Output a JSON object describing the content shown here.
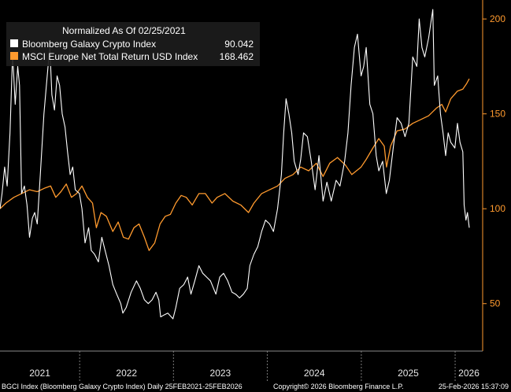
{
  "chart_data": {
    "type": "line",
    "legend_title": "Normalized As Of 02/25/2021",
    "legend_position": "top-left",
    "grid": false,
    "x_range": [
      "2021-02-25",
      "2026-02-25"
    ],
    "ylim": [
      25,
      210
    ],
    "y_ticks": [
      50,
      100,
      150,
      200
    ],
    "x_tick_labels": [
      "2021",
      "2022",
      "2023",
      "2024",
      "2025",
      "2026"
    ],
    "series": [
      {
        "name": "Bloomberg Galaxy Crypto Index",
        "last_value": "90.042",
        "color": "#ffffff",
        "points": [
          [
            "2021-02-25",
            100
          ],
          [
            "2021-03-05",
            108
          ],
          [
            "2021-03-15",
            122
          ],
          [
            "2021-03-25",
            112
          ],
          [
            "2021-04-05",
            140
          ],
          [
            "2021-04-15",
            182
          ],
          [
            "2021-04-25",
            155
          ],
          [
            "2021-05-05",
            175
          ],
          [
            "2021-05-12",
            165
          ],
          [
            "2021-05-20",
            108
          ],
          [
            "2021-05-31",
            112
          ],
          [
            "2021-06-10",
            102
          ],
          [
            "2021-06-20",
            85
          ],
          [
            "2021-07-01",
            95
          ],
          [
            "2021-07-10",
            98
          ],
          [
            "2021-07-20",
            92
          ],
          [
            "2021-08-01",
            118
          ],
          [
            "2021-08-15",
            150
          ],
          [
            "2021-08-31",
            175
          ],
          [
            "2021-09-07",
            185
          ],
          [
            "2021-09-15",
            160
          ],
          [
            "2021-09-25",
            152
          ],
          [
            "2021-10-05",
            170
          ],
          [
            "2021-10-15",
            165
          ],
          [
            "2021-10-25",
            150
          ],
          [
            "2021-11-05",
            143
          ],
          [
            "2021-11-15",
            130
          ],
          [
            "2021-11-25",
            118
          ],
          [
            "2021-12-05",
            122
          ],
          [
            "2021-12-15",
            110
          ],
          [
            "2021-12-31",
            108
          ],
          [
            "2022-01-10",
            100
          ],
          [
            "2022-01-22",
            82
          ],
          [
            "2022-02-05",
            90
          ],
          [
            "2022-02-15",
            78
          ],
          [
            "2022-02-28",
            76
          ],
          [
            "2022-03-15",
            72
          ],
          [
            "2022-03-28",
            85
          ],
          [
            "2022-04-10",
            78
          ],
          [
            "2022-04-25",
            70
          ],
          [
            "2022-05-10",
            60
          ],
          [
            "2022-05-25",
            55
          ],
          [
            "2022-06-10",
            50
          ],
          [
            "2022-06-18",
            45
          ],
          [
            "2022-07-01",
            48
          ],
          [
            "2022-07-20",
            56
          ],
          [
            "2022-08-10",
            62
          ],
          [
            "2022-08-25",
            58
          ],
          [
            "2022-09-10",
            52
          ],
          [
            "2022-09-25",
            50
          ],
          [
            "2022-10-10",
            52
          ],
          [
            "2022-10-25",
            56
          ],
          [
            "2022-11-05",
            52
          ],
          [
            "2022-11-12",
            43
          ],
          [
            "2022-11-25",
            44
          ],
          [
            "2022-12-10",
            45
          ],
          [
            "2022-12-30",
            42
          ],
          [
            "2023-01-10",
            48
          ],
          [
            "2023-01-25",
            58
          ],
          [
            "2023-02-10",
            60
          ],
          [
            "2023-02-25",
            64
          ],
          [
            "2023-03-10",
            55
          ],
          [
            "2023-03-25",
            62
          ],
          [
            "2023-04-10",
            70
          ],
          [
            "2023-04-25",
            66
          ],
          [
            "2023-05-10",
            64
          ],
          [
            "2023-05-25",
            62
          ],
          [
            "2023-06-15",
            55
          ],
          [
            "2023-06-30",
            64
          ],
          [
            "2023-07-15",
            66
          ],
          [
            "2023-07-31",
            62
          ],
          [
            "2023-08-17",
            56
          ],
          [
            "2023-08-31",
            55
          ],
          [
            "2023-09-15",
            53
          ],
          [
            "2023-09-30",
            55
          ],
          [
            "2023-10-15",
            58
          ],
          [
            "2023-10-25",
            70
          ],
          [
            "2023-11-10",
            76
          ],
          [
            "2023-11-25",
            80
          ],
          [
            "2023-12-10",
            88
          ],
          [
            "2023-12-25",
            94
          ],
          [
            "2024-01-10",
            92
          ],
          [
            "2024-01-25",
            88
          ],
          [
            "2024-02-10",
            100
          ],
          [
            "2024-02-25",
            118
          ],
          [
            "2024-03-05",
            140
          ],
          [
            "2024-03-14",
            158
          ],
          [
            "2024-03-25",
            150
          ],
          [
            "2024-04-05",
            140
          ],
          [
            "2024-04-15",
            125
          ],
          [
            "2024-04-30",
            118
          ],
          [
            "2024-05-10",
            126
          ],
          [
            "2024-05-21",
            140
          ],
          [
            "2024-06-05",
            138
          ],
          [
            "2024-06-20",
            125
          ],
          [
            "2024-07-05",
            110
          ],
          [
            "2024-07-20",
            128
          ],
          [
            "2024-08-05",
            104
          ],
          [
            "2024-08-20",
            114
          ],
          [
            "2024-09-06",
            104
          ],
          [
            "2024-09-25",
            115
          ],
          [
            "2024-10-10",
            112
          ],
          [
            "2024-10-28",
            125
          ],
          [
            "2024-11-10",
            140
          ],
          [
            "2024-11-22",
            165
          ],
          [
            "2024-12-05",
            185
          ],
          [
            "2024-12-17",
            192
          ],
          [
            "2024-12-31",
            170
          ],
          [
            "2025-01-10",
            175
          ],
          [
            "2025-01-20",
            185
          ],
          [
            "2025-02-03",
            155
          ],
          [
            "2025-02-15",
            150
          ],
          [
            "2025-02-28",
            128
          ],
          [
            "2025-03-10",
            120
          ],
          [
            "2025-03-25",
            125
          ],
          [
            "2025-04-08",
            108
          ],
          [
            "2025-04-20",
            115
          ],
          [
            "2025-05-05",
            132
          ],
          [
            "2025-05-20",
            148
          ],
          [
            "2025-06-05",
            145
          ],
          [
            "2025-06-20",
            138
          ],
          [
            "2025-07-05",
            145
          ],
          [
            "2025-07-20",
            180
          ],
          [
            "2025-08-05",
            175
          ],
          [
            "2025-08-14",
            200
          ],
          [
            "2025-08-25",
            185
          ],
          [
            "2025-09-05",
            180
          ],
          [
            "2025-09-20",
            190
          ],
          [
            "2025-10-06",
            205
          ],
          [
            "2025-10-12",
            165
          ],
          [
            "2025-10-25",
            170
          ],
          [
            "2025-11-05",
            150
          ],
          [
            "2025-11-15",
            140
          ],
          [
            "2025-11-25",
            128
          ],
          [
            "2025-12-05",
            140
          ],
          [
            "2025-12-15",
            135
          ],
          [
            "2025-12-31",
            132
          ],
          [
            "2026-01-10",
            145
          ],
          [
            "2026-01-20",
            135
          ],
          [
            "2026-01-31",
            130
          ],
          [
            "2026-02-05",
            102
          ],
          [
            "2026-02-12",
            94
          ],
          [
            "2026-02-18",
            98
          ],
          [
            "2026-02-25",
            90
          ]
        ]
      },
      {
        "name": "MSCI Europe Net Total Return USD Index",
        "last_value": "168.462",
        "color": "#ff9a2e",
        "points": [
          [
            "2021-02-25",
            100
          ],
          [
            "2021-03-20",
            103
          ],
          [
            "2021-04-20",
            106
          ],
          [
            "2021-05-20",
            108
          ],
          [
            "2021-06-20",
            110
          ],
          [
            "2021-07-20",
            109
          ],
          [
            "2021-08-20",
            111
          ],
          [
            "2021-09-10",
            112
          ],
          [
            "2021-09-30",
            106
          ],
          [
            "2021-10-20",
            109
          ],
          [
            "2021-11-10",
            113
          ],
          [
            "2021-11-30",
            106
          ],
          [
            "2021-12-20",
            108
          ],
          [
            "2022-01-10",
            112
          ],
          [
            "2022-01-31",
            106
          ],
          [
            "2022-02-20",
            103
          ],
          [
            "2022-03-07",
            90
          ],
          [
            "2022-03-25",
            98
          ],
          [
            "2022-04-15",
            96
          ],
          [
            "2022-05-10",
            88
          ],
          [
            "2022-05-31",
            93
          ],
          [
            "2022-06-20",
            85
          ],
          [
            "2022-07-10",
            84
          ],
          [
            "2022-07-31",
            90
          ],
          [
            "2022-08-20",
            92
          ],
          [
            "2022-09-10",
            85
          ],
          [
            "2022-09-28",
            78
          ],
          [
            "2022-10-20",
            82
          ],
          [
            "2022-11-10",
            92
          ],
          [
            "2022-11-30",
            96
          ],
          [
            "2022-12-20",
            97
          ],
          [
            "2023-01-10",
            103
          ],
          [
            "2023-01-31",
            107
          ],
          [
            "2023-02-20",
            106
          ],
          [
            "2023-03-15",
            102
          ],
          [
            "2023-04-10",
            108
          ],
          [
            "2023-05-05",
            108
          ],
          [
            "2023-05-31",
            103
          ],
          [
            "2023-06-20",
            106
          ],
          [
            "2023-07-20",
            108
          ],
          [
            "2023-08-20",
            104
          ],
          [
            "2023-09-20",
            102
          ],
          [
            "2023-10-20",
            98
          ],
          [
            "2023-11-10",
            103
          ],
          [
            "2023-12-10",
            108
          ],
          [
            "2024-01-10",
            110
          ],
          [
            "2024-02-10",
            112
          ],
          [
            "2024-03-10",
            116
          ],
          [
            "2024-04-10",
            118
          ],
          [
            "2024-05-10",
            122
          ],
          [
            "2024-06-10",
            120
          ],
          [
            "2024-07-10",
            124
          ],
          [
            "2024-08-05",
            117
          ],
          [
            "2024-08-31",
            124
          ],
          [
            "2024-09-30",
            127
          ],
          [
            "2024-10-31",
            123
          ],
          [
            "2024-11-25",
            118
          ],
          [
            "2024-12-31",
            122
          ],
          [
            "2025-01-20",
            126
          ],
          [
            "2025-02-15",
            132
          ],
          [
            "2025-03-10",
            137
          ],
          [
            "2025-03-31",
            133
          ],
          [
            "2025-04-09",
            122
          ],
          [
            "2025-04-25",
            133
          ],
          [
            "2025-05-20",
            141
          ],
          [
            "2025-06-20",
            142
          ],
          [
            "2025-07-20",
            145
          ],
          [
            "2025-08-20",
            147
          ],
          [
            "2025-09-20",
            149
          ],
          [
            "2025-10-20",
            153
          ],
          [
            "2025-11-10",
            155
          ],
          [
            "2025-11-25",
            151
          ],
          [
            "2025-12-15",
            158
          ],
          [
            "2026-01-10",
            162
          ],
          [
            "2026-01-31",
            163
          ],
          [
            "2026-02-15",
            166
          ],
          [
            "2026-02-25",
            168.462
          ]
        ]
      }
    ]
  },
  "footer": {
    "left": "BGCI Index (Bloomberg Galaxy Crypto Index) Daily 25FEB2021-25FEB2026",
    "center": "Copyright© 2026 Bloomberg Finance L.P.",
    "right": "25-Feb-2026 15:37:09"
  }
}
